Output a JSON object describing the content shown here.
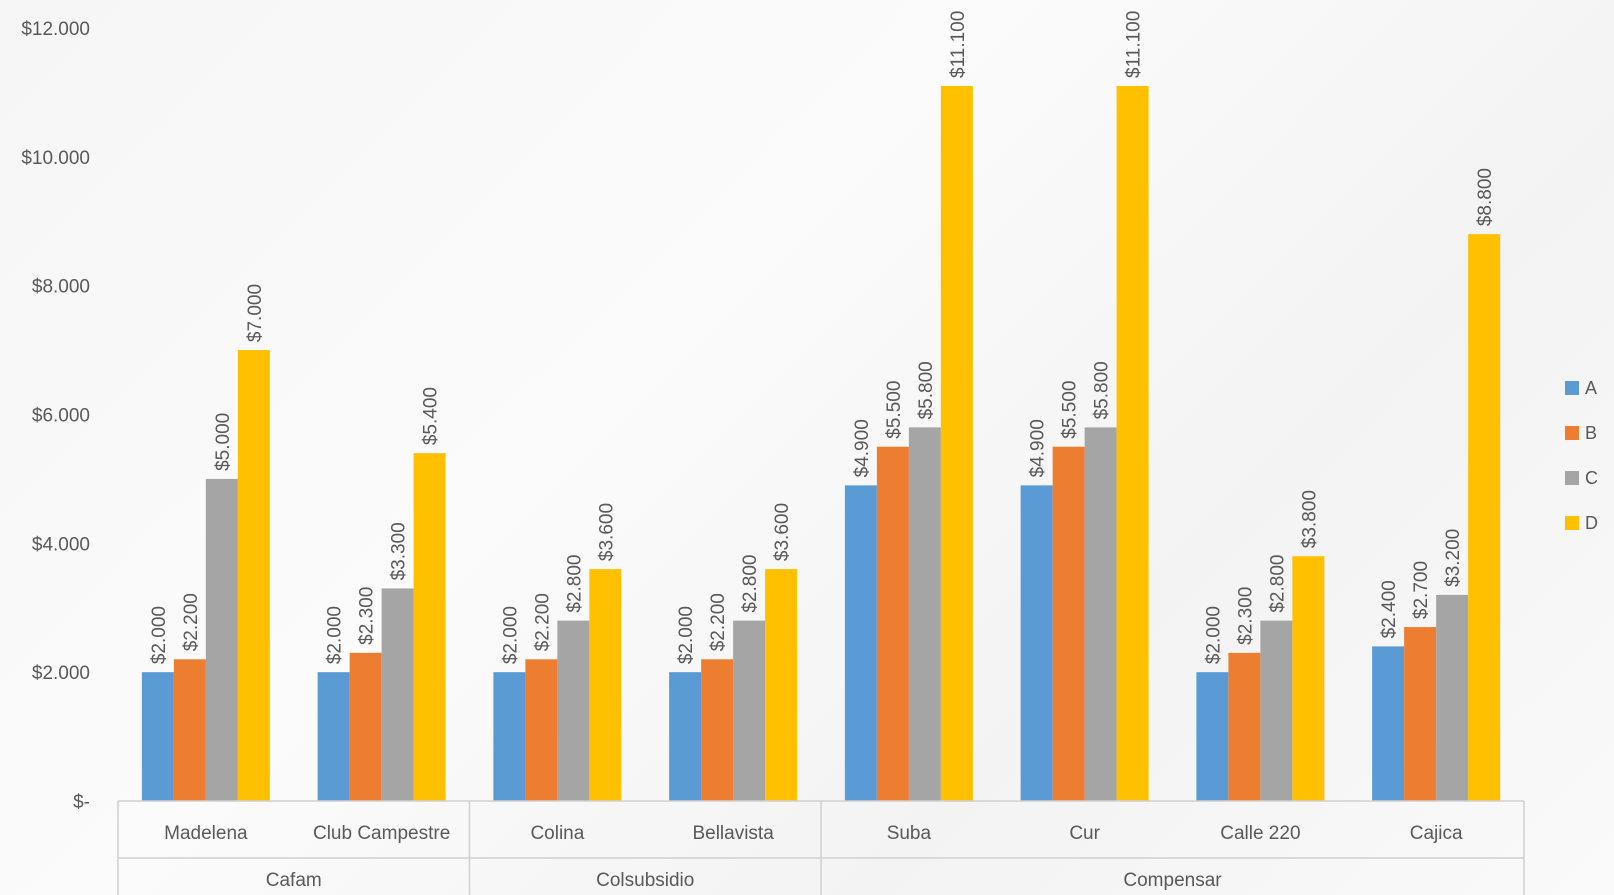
{
  "chart_data": {
    "type": "bar",
    "groups": [
      {
        "name": "Cafam",
        "categories": [
          "Madelena",
          "Club Campestre"
        ]
      },
      {
        "name": "Colsubsidio",
        "categories": [
          "Colina",
          "Bellavista"
        ]
      },
      {
        "name": "Compensar",
        "categories": [
          "Suba",
          "Cur",
          "Calle 220",
          "Cajica"
        ]
      }
    ],
    "categories": [
      "Madelena",
      "Club Campestre",
      "Colina",
      "Bellavista",
      "Suba",
      "Cur",
      "Calle 220",
      "Cajica"
    ],
    "series": [
      {
        "name": "A",
        "color": "#5B9BD5",
        "values": [
          2000,
          2000,
          2000,
          2000,
          4900,
          4900,
          2000,
          2400
        ]
      },
      {
        "name": "B",
        "color": "#ED7D31",
        "values": [
          2200,
          2300,
          2200,
          2200,
          5500,
          5500,
          2300,
          2700
        ]
      },
      {
        "name": "C",
        "color": "#A5A5A5",
        "values": [
          5000,
          3300,
          2800,
          2800,
          5800,
          5800,
          2800,
          3200
        ]
      },
      {
        "name": "D",
        "color": "#FFC000",
        "values": [
          7000,
          5400,
          3600,
          3600,
          11100,
          11100,
          3800,
          8800
        ]
      }
    ],
    "ylim": [
      0,
      12000
    ],
    "yticks": [
      0,
      2000,
      4000,
      6000,
      8000,
      10000,
      12000
    ],
    "ytick_labels": [
      "$-",
      "$2.000",
      "$4.000",
      "$6.000",
      "$8.000",
      "$10.000",
      "$12.000"
    ],
    "data_labels": [
      [
        "$2.000",
        "$2.000",
        "$2.000",
        "$2.000",
        "$4.900",
        "$4.900",
        "$2.000",
        "$2.400"
      ],
      [
        "$2.200",
        "$2.300",
        "$2.200",
        "$2.200",
        "$5.500",
        "$5.500",
        "$2.300",
        "$2.700"
      ],
      [
        "$5.000",
        "$3.300",
        "$2.800",
        "$2.800",
        "$5.800",
        "$5.800",
        "$2.800",
        "$3.200"
      ],
      [
        "$7.000",
        "$5.400",
        "$3.600",
        "$3.600",
        "$11.100",
        "$11.100",
        "$3.800",
        "$8.800"
      ]
    ],
    "grid": false,
    "legend_position": "right"
  }
}
